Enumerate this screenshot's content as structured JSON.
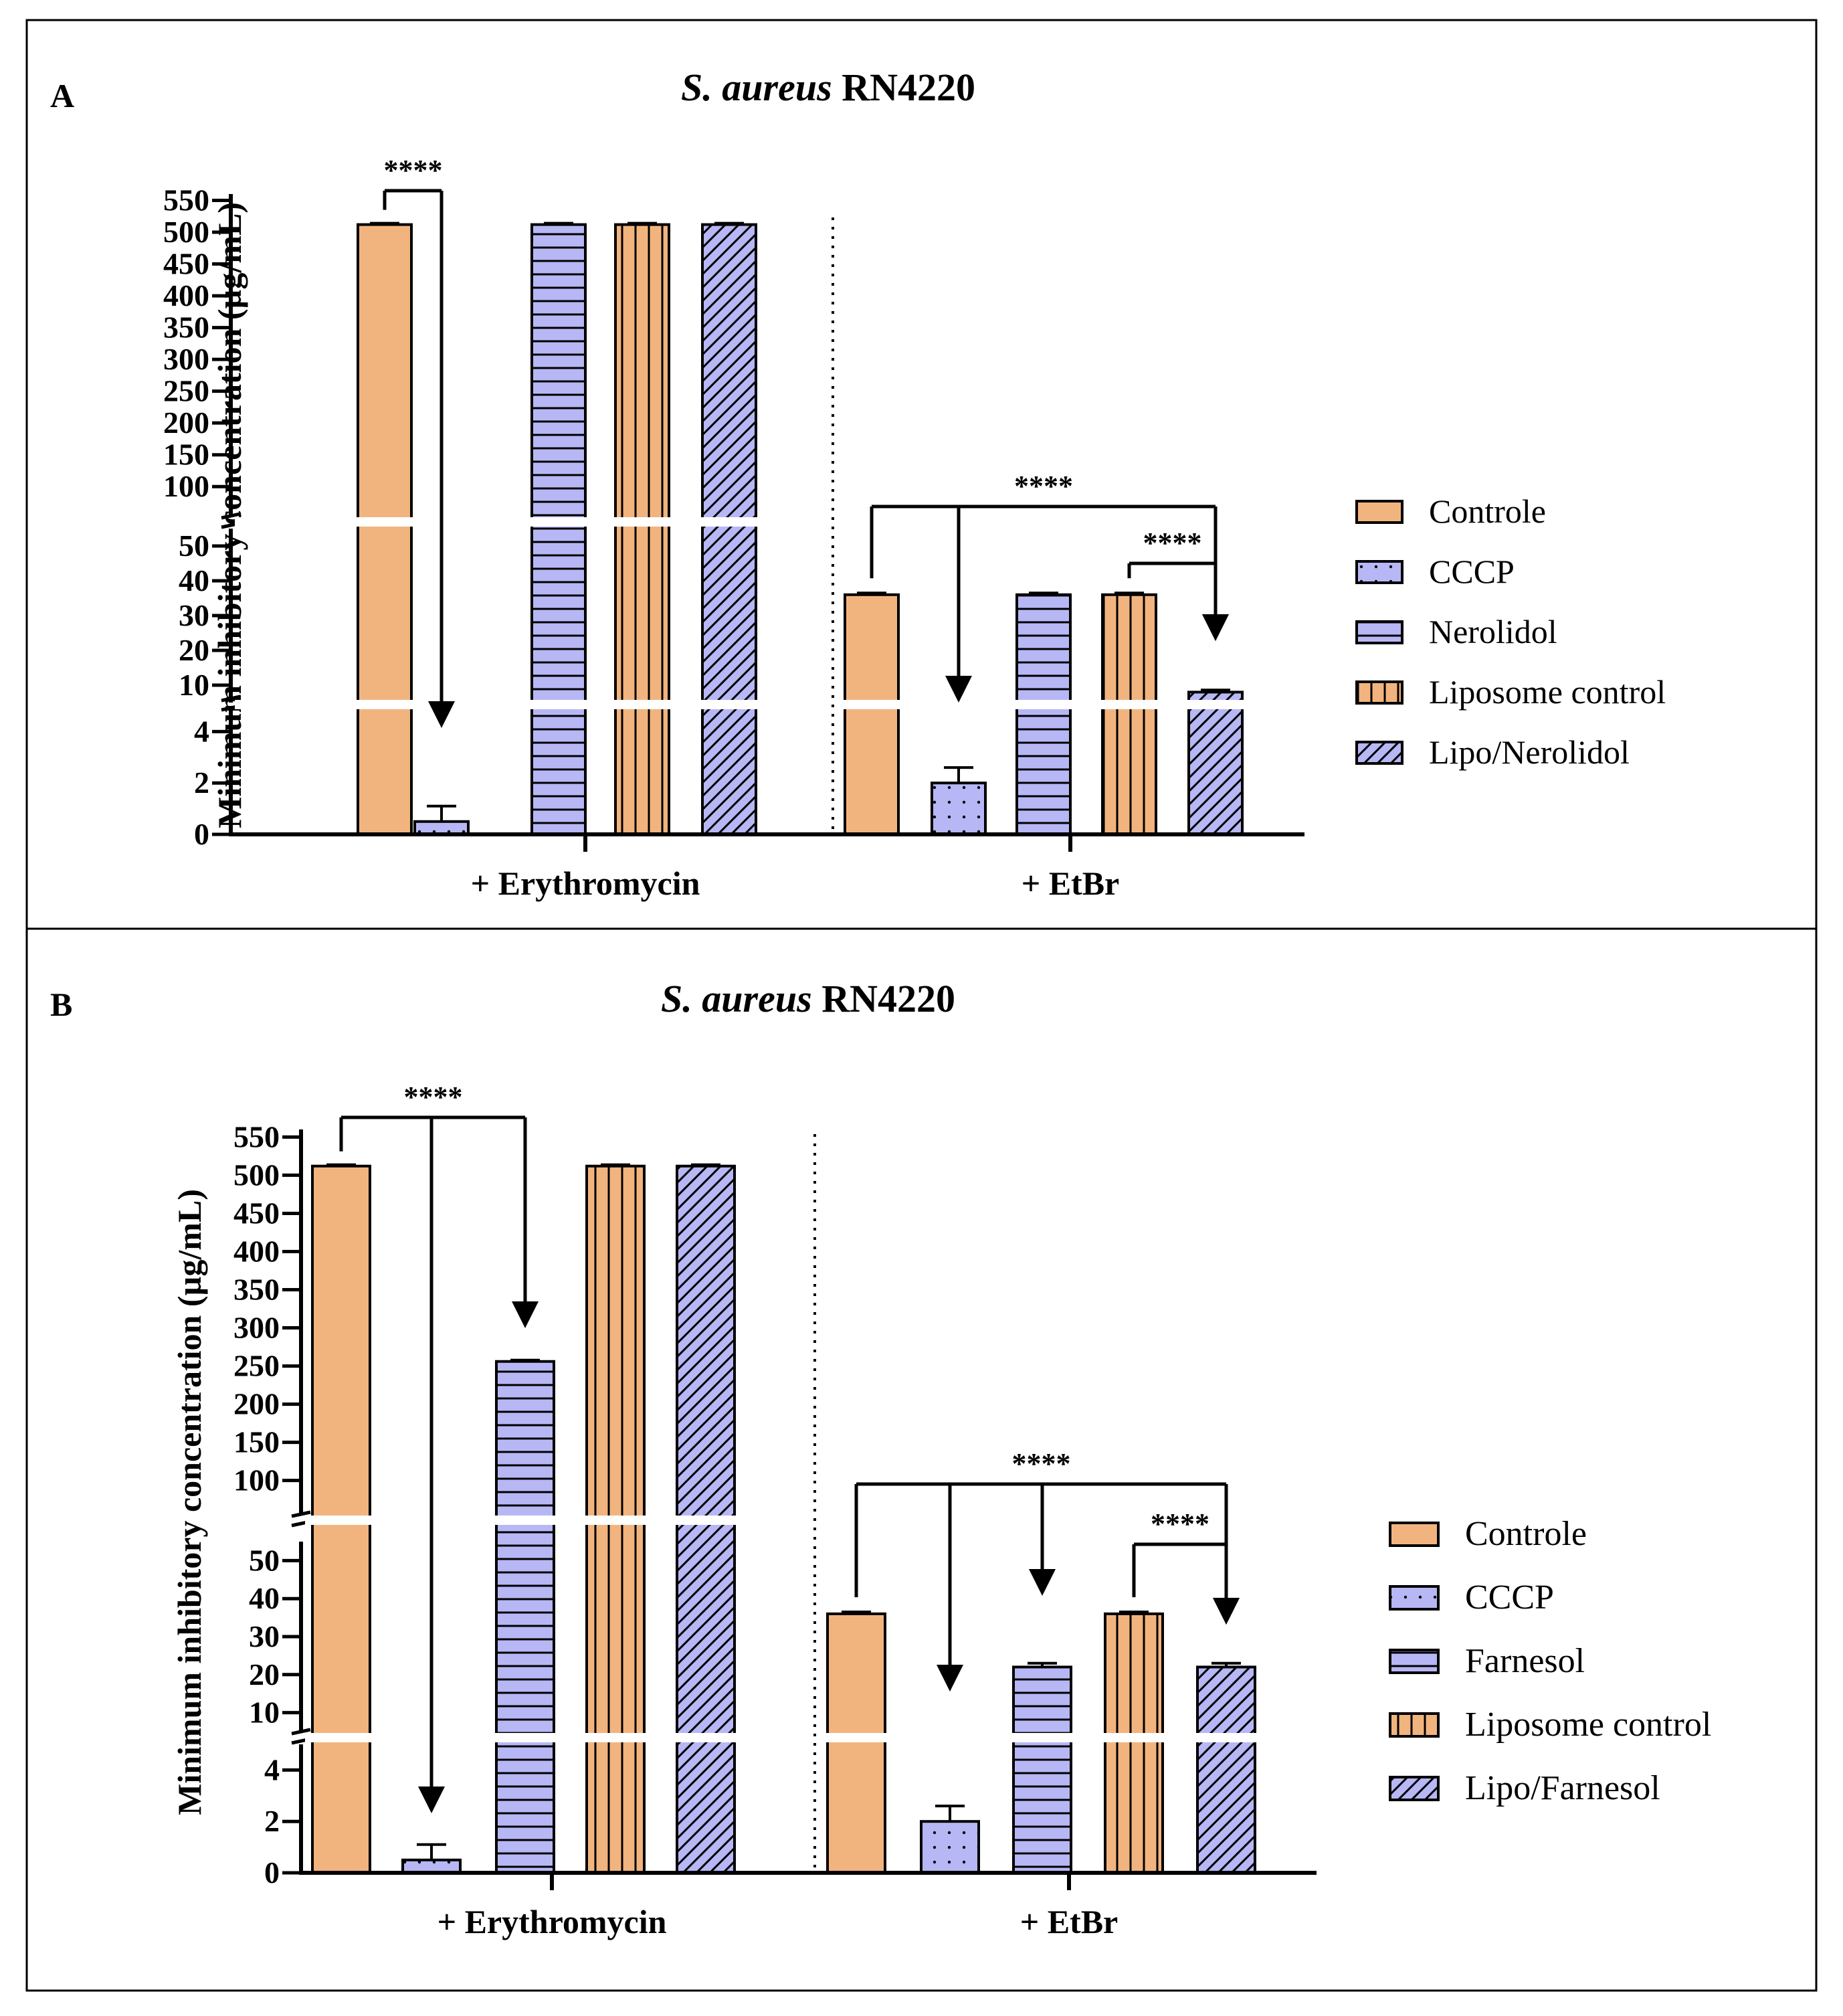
{
  "colors": {
    "controle": "#f2b47e",
    "blue": "#b7b7f5",
    "stroke": "#000000",
    "frame": "#000000"
  },
  "chart_data": [
    {
      "type": "bar",
      "panel_label": "A",
      "title_italic": "S. aureus",
      "title_rest": " RN4220",
      "ylabel": "Minimum inhibitory concentration (µg/mL)",
      "groups": [
        "+ Erythromycin",
        "+ EtBr"
      ],
      "series": [
        {
          "name": "Controle",
          "pattern": "solid",
          "color": "controle",
          "values": [
            512,
            36
          ],
          "errors": [
            0,
            0.5
          ]
        },
        {
          "name": "CCCP",
          "pattern": "dots",
          "color": "blue",
          "values": [
            0.5,
            2
          ],
          "errors": [
            0.6,
            0.6
          ]
        },
        {
          "name": "Nerolidol",
          "pattern": "hlines",
          "color": "blue",
          "values": [
            512,
            36
          ],
          "errors": [
            0,
            0.5
          ]
        },
        {
          "name": "Liposome control",
          "pattern": "vlines",
          "color": "controle",
          "values": [
            512,
            36
          ],
          "errors": [
            0,
            0.5
          ]
        },
        {
          "name": "Lipo/Nerolidol",
          "pattern": "diag",
          "color": "blue",
          "values": [
            512,
            8
          ],
          "errors": [
            0,
            0.6
          ]
        }
      ],
      "axis_segments": [
        {
          "range": [
            0,
            5
          ],
          "ticks": [
            0,
            2,
            4
          ]
        },
        {
          "range": [
            5,
            55
          ],
          "ticks": [
            10,
            20,
            30,
            40,
            50
          ]
        },
        {
          "range": [
            55,
            560
          ],
          "ticks": [
            100,
            150,
            200,
            250,
            300,
            350,
            400,
            450,
            500,
            550
          ]
        }
      ],
      "significance": [
        {
          "label": "****",
          "group": 0,
          "from": 0,
          "to": [
            1
          ]
        },
        {
          "label": "****",
          "group": 1,
          "from": 0,
          "to": [
            1,
            4
          ]
        },
        {
          "label": "****",
          "group": 1,
          "from": 3,
          "to": [
            4
          ]
        }
      ]
    },
    {
      "type": "bar",
      "panel_label": "B",
      "title_italic": "S. aureus",
      "title_rest": " RN4220",
      "ylabel": "Minimum inhibitory concentration (µg/mL)",
      "groups": [
        "+ Erythromycin",
        "+ EtBr"
      ],
      "series": [
        {
          "name": "Controle",
          "pattern": "solid",
          "color": "controle",
          "values": [
            512,
            36
          ],
          "errors": [
            0,
            0.5
          ]
        },
        {
          "name": "CCCP",
          "pattern": "dots",
          "color": "blue",
          "values": [
            0.5,
            2
          ],
          "errors": [
            0.6,
            0.6
          ]
        },
        {
          "name": "Farnesol",
          "pattern": "hlines",
          "color": "blue",
          "values": [
            256,
            22
          ],
          "errors": [
            0,
            1
          ]
        },
        {
          "name": "Liposome control",
          "pattern": "vlines",
          "color": "controle",
          "values": [
            512,
            36
          ],
          "errors": [
            0,
            0.5
          ]
        },
        {
          "name": "Lipo/Farnesol",
          "pattern": "diag",
          "color": "blue",
          "values": [
            512,
            22
          ],
          "errors": [
            0,
            1
          ]
        }
      ],
      "axis_segments": [
        {
          "range": [
            0,
            5
          ],
          "ticks": [
            0,
            2,
            4
          ]
        },
        {
          "range": [
            5,
            55
          ],
          "ticks": [
            10,
            20,
            30,
            40,
            50
          ]
        },
        {
          "range": [
            55,
            560
          ],
          "ticks": [
            100,
            150,
            200,
            250,
            300,
            350,
            400,
            450,
            500,
            550
          ]
        }
      ],
      "significance": [
        {
          "label": "****",
          "group": 0,
          "from": 0,
          "to": [
            1,
            2
          ]
        },
        {
          "label": "****",
          "group": 1,
          "from": 0,
          "to": [
            1,
            2,
            4
          ]
        },
        {
          "label": "****",
          "group": 1,
          "from": 3,
          "to": [
            4
          ]
        }
      ]
    }
  ]
}
